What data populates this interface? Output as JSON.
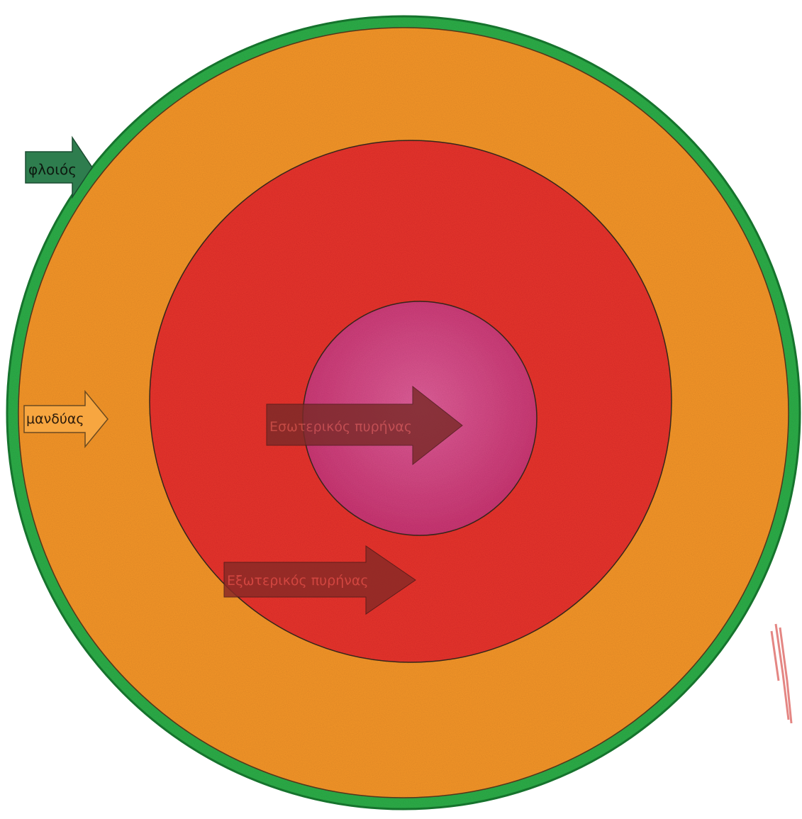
{
  "layers": [
    {
      "id": "crust",
      "label": "φλοιός",
      "color": "#2fae48"
    },
    {
      "id": "mantle",
      "label": "μανδύας",
      "color": "#f5962a"
    },
    {
      "id": "outer_core",
      "label": "Εξωτερικός πυρήνας",
      "color": "#e8342f"
    },
    {
      "id": "inner_core",
      "label": "Εσωτερικός πυρήνας",
      "color": "#d0357a"
    }
  ],
  "colors": {
    "crust_arrow": "#2e7d4e",
    "mantle_arrow": "#f7a640",
    "core_arrow": "#8a2a26",
    "outline": "#3a2a20",
    "pencil_mark": "#d9534f"
  }
}
